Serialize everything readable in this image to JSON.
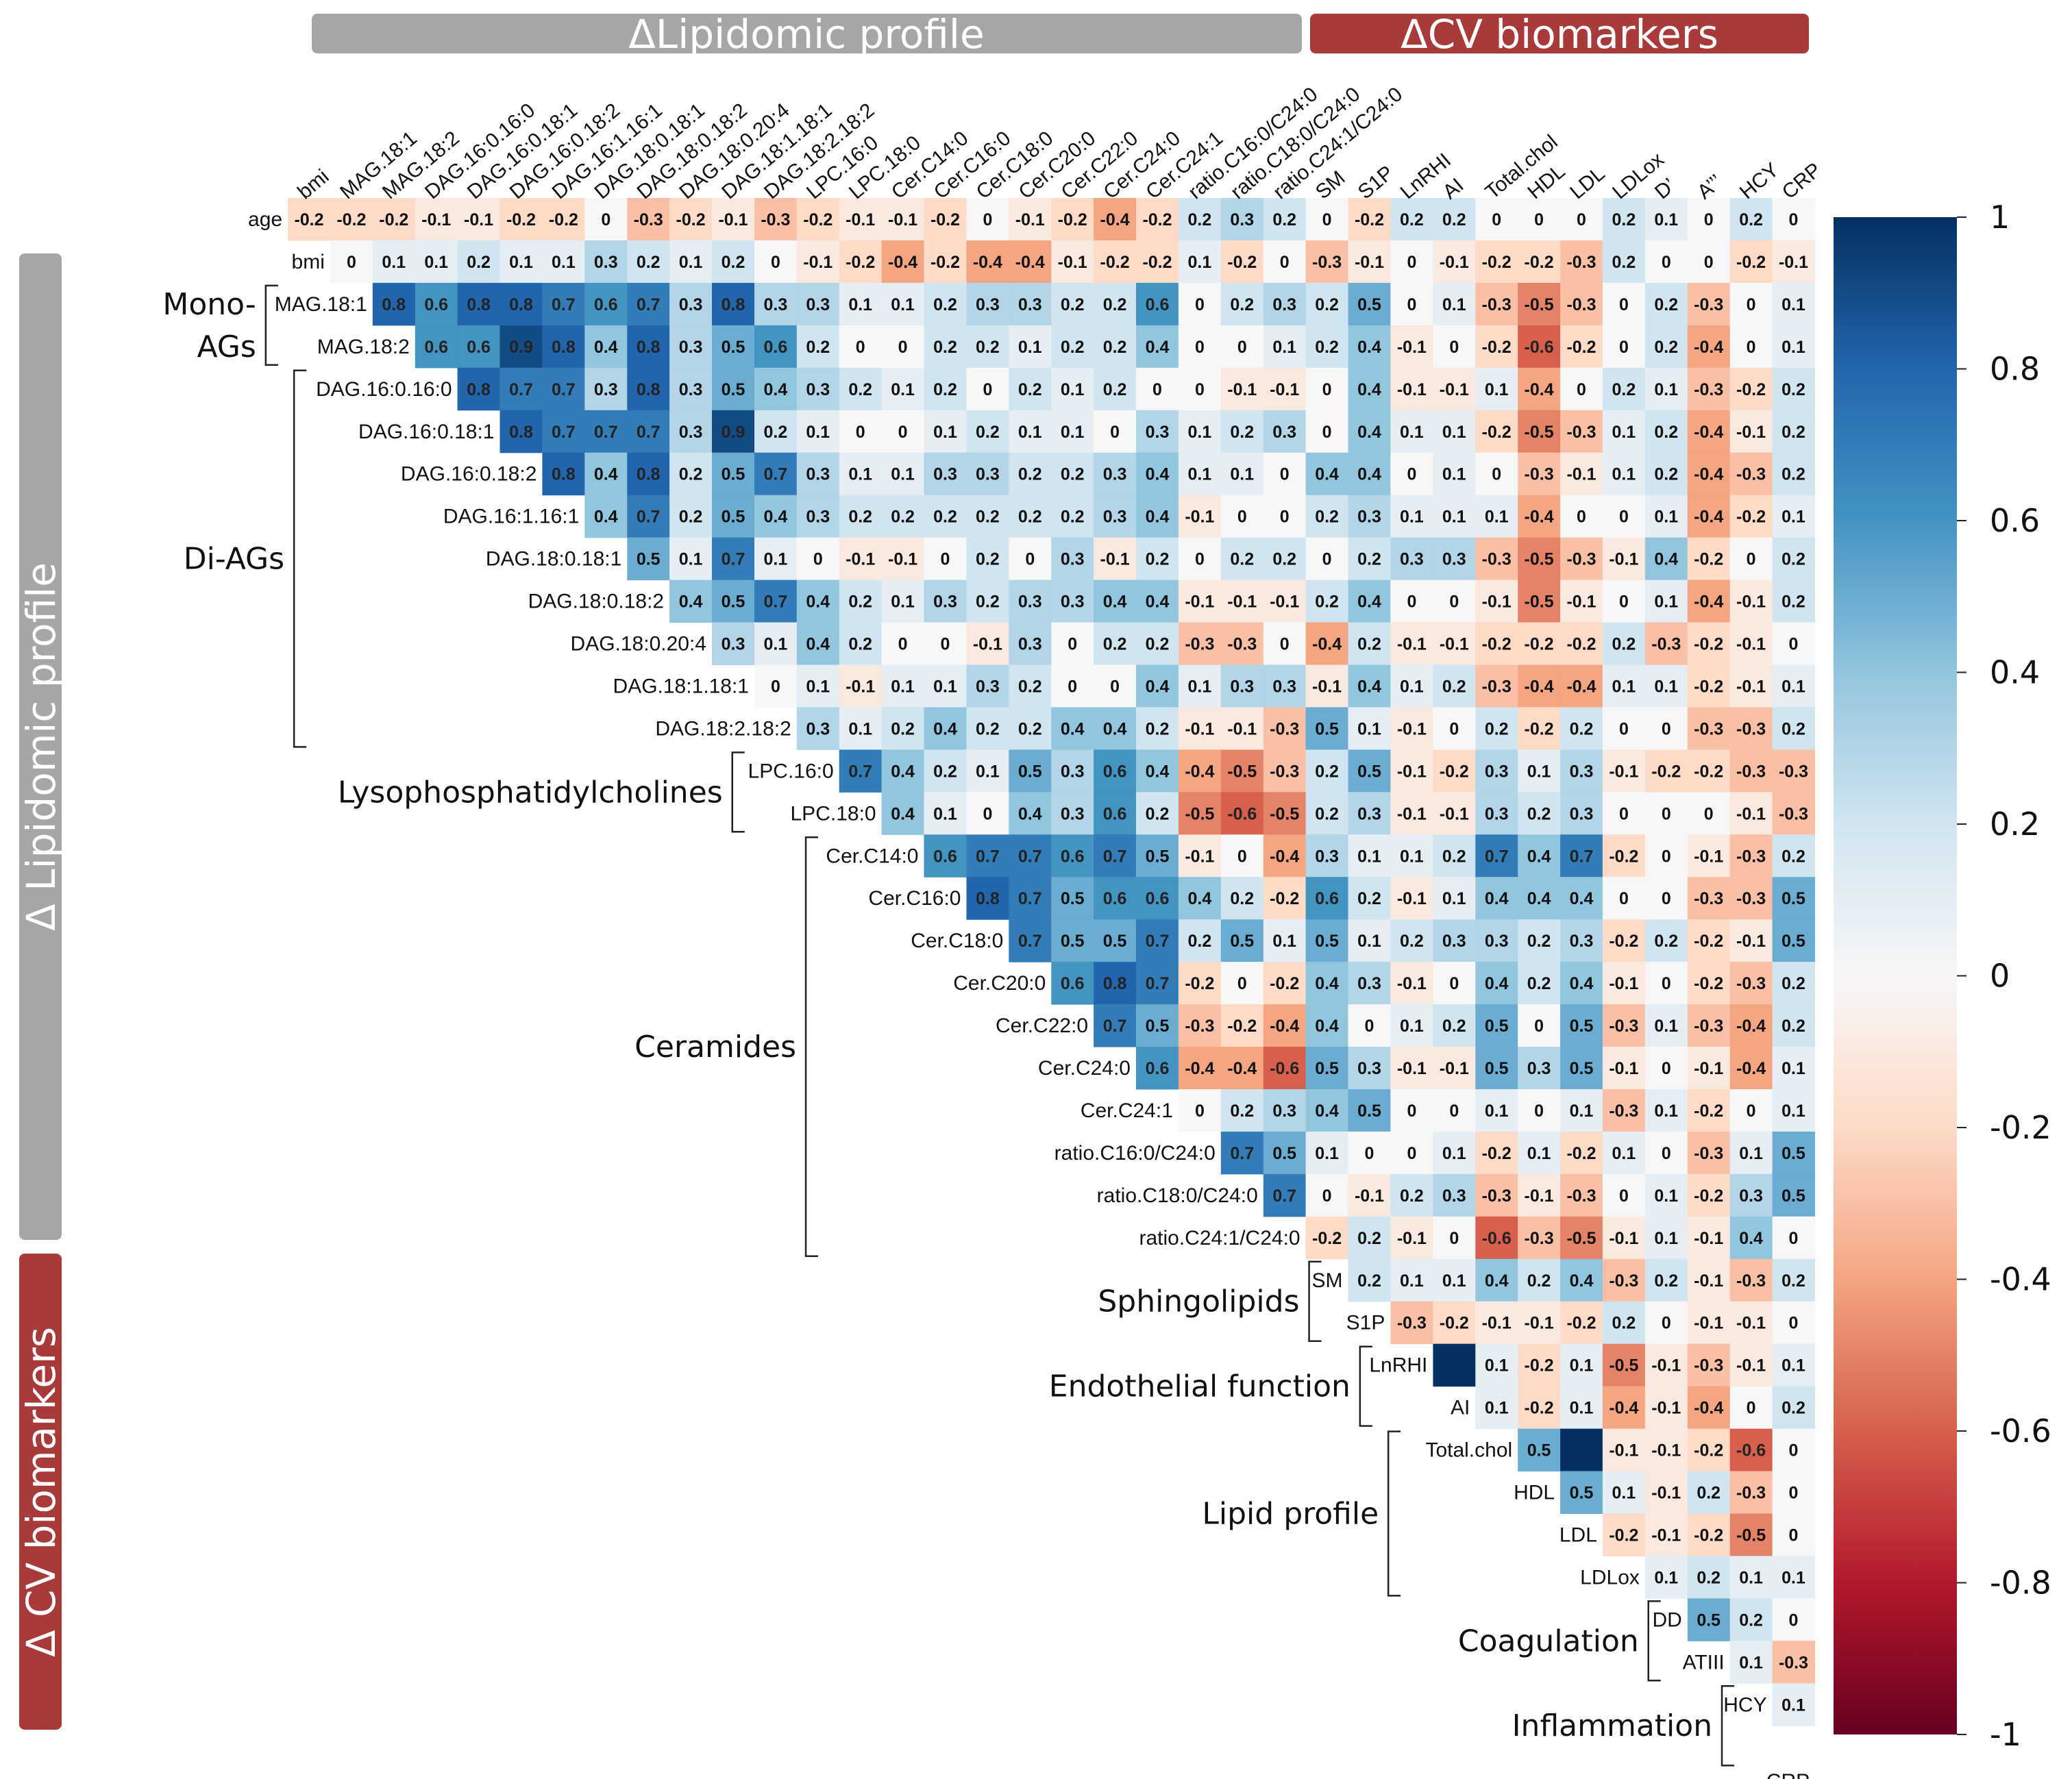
{
  "chart_data": {
    "type": "heatmap",
    "subtype": "upper-triangular correlation matrix",
    "row_variables": [
      "age",
      "bmi",
      "MAG.18:1",
      "MAG.18:2",
      "DAG.16:0.16:0",
      "DAG.16:0.18:1",
      "DAG.16:0.18:2",
      "DAG.16:1.16:1",
      "DAG.18:0.18:1",
      "DAG.18:0.18:2",
      "DAG.18:0.20:4",
      "DAG.18:1.18:1",
      "DAG.18:2.18:2",
      "LPC.16:0",
      "LPC.18:0",
      "Cer.C14:0",
      "Cer.C16:0",
      "Cer.C18:0",
      "Cer.C20:0",
      "Cer.C22:0",
      "Cer.C24:0",
      "Cer.C24:1",
      "ratio.C16:0/C24:0",
      "ratio.C18:0/C24:0",
      "ratio.C24:1/C24:0",
      "SM",
      "S1P",
      "LnRHI",
      "AI",
      "Total.chol",
      "HDL",
      "LDL",
      "LDLox",
      "DD",
      "ATIII",
      "HCY",
      "CRP"
    ],
    "column_labels": [
      "bmi",
      "MAG.18:1",
      "MAG.18:2",
      "DAG.16:0.16:0",
      "DAG.16:0.18:1",
      "DAG.16:0.18:2",
      "DAG.16:1.16:1",
      "DAG.18:0.18:1",
      "DAG.18:0.18:2",
      "DAG.18:0.20:4",
      "DAG.18:1.18:1",
      "DAG.18:2.18:2",
      "LPC.16:0",
      "LPC.18:0",
      "Cer.C14:0",
      "Cer.C16:0",
      "Cer.C18:0",
      "Cer.C20:0",
      "Cer.C22:0",
      "Cer.C24:0",
      "Cer.C24:1",
      "ratio.C16:0/C24:0",
      "ratio.C18:0/C24:0",
      "ratio.C24:1/C24:0",
      "SM",
      "S1P",
      "LnRHI",
      "AI",
      "Total.chol",
      "HDL",
      "LDL",
      "LDLox",
      "D’",
      "A’’’",
      "HCY",
      "CRP"
    ],
    "rows": [
      [
        -0.2,
        -0.2,
        -0.2,
        -0.1,
        -0.1,
        -0.2,
        -0.2,
        0,
        -0.3,
        -0.2,
        -0.1,
        -0.3,
        -0.2,
        -0.1,
        -0.1,
        -0.2,
        0,
        -0.1,
        -0.2,
        -0.4,
        -0.2,
        0.2,
        0.3,
        0.2,
        0,
        -0.2,
        0.2,
        0.2,
        0,
        0,
        0,
        0.2,
        0.1,
        0,
        0.2,
        0
      ],
      [
        0,
        0.1,
        0.1,
        0.2,
        0.1,
        0.1,
        0.3,
        0.2,
        0.1,
        0.2,
        0,
        -0.1,
        -0.2,
        -0.4,
        -0.2,
        -0.4,
        -0.4,
        -0.1,
        -0.2,
        -0.2,
        0.1,
        -0.2,
        0,
        -0.3,
        -0.1,
        0,
        -0.1,
        -0.2,
        -0.2,
        -0.3,
        0.2,
        0,
        0,
        -0.2,
        -0.1
      ],
      [
        0.8,
        0.6,
        0.8,
        0.8,
        0.7,
        0.6,
        0.7,
        0.3,
        0.8,
        0.3,
        0.3,
        0.1,
        0.1,
        0.2,
        0.3,
        0.3,
        0.2,
        0.2,
        0.6,
        0,
        0.2,
        0.3,
        0.2,
        0.5,
        0,
        0.1,
        -0.3,
        -0.5,
        -0.3,
        0,
        0.2,
        -0.3,
        0,
        0.1
      ],
      [
        0.6,
        0.6,
        0.9,
        0.8,
        0.4,
        0.8,
        0.3,
        0.5,
        0.6,
        0.2,
        0,
        0,
        0.2,
        0.2,
        0.1,
        0.2,
        0.2,
        0.4,
        0,
        0,
        0.1,
        0.2,
        0.4,
        -0.1,
        0,
        -0.2,
        -0.6,
        -0.2,
        0,
        0.2,
        -0.4,
        0,
        0.1
      ],
      [
        0.8,
        0.7,
        0.7,
        0.3,
        0.8,
        0.3,
        0.5,
        0.4,
        0.3,
        0.2,
        0.1,
        0.2,
        0,
        0.2,
        0.1,
        0.2,
        0,
        0,
        -0.1,
        -0.1,
        0,
        0.4,
        -0.1,
        -0.1,
        0.1,
        -0.4,
        0,
        0.2,
        0.1,
        -0.3,
        -0.2,
        0.2
      ],
      [
        0.8,
        0.7,
        0.7,
        0.7,
        0.3,
        0.9,
        0.2,
        0.1,
        0,
        0,
        0.1,
        0.2,
        0.1,
        0.1,
        0,
        0.3,
        0.1,
        0.2,
        0.3,
        0,
        0.4,
        0.1,
        0.1,
        -0.2,
        -0.5,
        -0.3,
        0.1,
        0.2,
        -0.4,
        -0.1,
        0.2
      ],
      [
        0.8,
        0.4,
        0.8,
        0.2,
        0.5,
        0.7,
        0.3,
        0.1,
        0.1,
        0.3,
        0.3,
        0.2,
        0.2,
        0.3,
        0.4,
        0.1,
        0.1,
        0,
        0.4,
        0.4,
        0,
        0.1,
        0,
        -0.3,
        -0.1,
        0.1,
        0.2,
        -0.4,
        -0.3,
        0.2
      ],
      [
        0.4,
        0.7,
        0.2,
        0.5,
        0.4,
        0.3,
        0.2,
        0.2,
        0.2,
        0.2,
        0.2,
        0.2,
        0.3,
        0.4,
        -0.1,
        0,
        0,
        0.2,
        0.3,
        0.1,
        0.1,
        0.1,
        -0.4,
        0,
        0,
        0.1,
        -0.4,
        -0.2,
        0.1
      ],
      [
        0.5,
        0.1,
        0.7,
        0.1,
        0,
        -0.1,
        -0.1,
        0,
        0.2,
        0,
        0.3,
        -0.1,
        0.2,
        0,
        0.2,
        0.2,
        0,
        0.2,
        0.3,
        0.3,
        -0.3,
        -0.5,
        -0.3,
        -0.1,
        0.4,
        -0.2,
        0,
        0.2
      ],
      [
        0.4,
        0.5,
        0.7,
        0.4,
        0.2,
        0.1,
        0.3,
        0.2,
        0.3,
        0.3,
        0.4,
        0.4,
        -0.1,
        -0.1,
        -0.1,
        0.2,
        0.4,
        0,
        0,
        -0.1,
        -0.5,
        -0.1,
        0,
        0.1,
        -0.4,
        -0.1,
        0.2
      ],
      [
        0.3,
        0.1,
        0.4,
        0.2,
        0,
        0,
        -0.1,
        0.3,
        0,
        0.2,
        0.2,
        -0.3,
        -0.3,
        0,
        -0.4,
        0.2,
        -0.1,
        -0.1,
        -0.2,
        -0.2,
        -0.2,
        0.2,
        -0.3,
        -0.2,
        -0.1,
        0
      ],
      [
        0,
        0.1,
        -0.1,
        0.1,
        0.1,
        0.3,
        0.2,
        0,
        0,
        0.4,
        0.1,
        0.3,
        0.3,
        -0.1,
        0.4,
        0.1,
        0.2,
        -0.3,
        -0.4,
        -0.4,
        0.1,
        0.1,
        -0.2,
        -0.1,
        0.1
      ],
      [
        0.3,
        0.1,
        0.2,
        0.4,
        0.2,
        0.2,
        0.4,
        0.4,
        0.2,
        -0.1,
        -0.1,
        -0.3,
        0.5,
        0.1,
        -0.1,
        0,
        0.2,
        -0.2,
        0.2,
        0,
        0,
        -0.3,
        -0.3,
        0.2
      ],
      [
        0.7,
        0.4,
        0.2,
        0.1,
        0.5,
        0.3,
        0.6,
        0.4,
        -0.4,
        -0.5,
        -0.3,
        0.2,
        0.5,
        -0.1,
        -0.2,
        0.3,
        0.1,
        0.3,
        -0.1,
        -0.2,
        -0.2,
        -0.3,
        -0.3
      ],
      [
        0.4,
        0.1,
        0,
        0.4,
        0.3,
        0.6,
        0.2,
        -0.5,
        -0.6,
        -0.5,
        0.2,
        0.3,
        -0.1,
        -0.1,
        0.3,
        0.2,
        0.3,
        0,
        0,
        0,
        -0.1,
        -0.3
      ],
      [
        0.6,
        0.7,
        0.7,
        0.6,
        0.7,
        0.5,
        -0.1,
        0,
        -0.4,
        0.3,
        0.1,
        0.1,
        0.2,
        0.7,
        0.4,
        0.7,
        -0.2,
        0,
        -0.1,
        -0.3,
        0.2
      ],
      [
        0.8,
        0.7,
        0.5,
        0.6,
        0.6,
        0.4,
        0.2,
        -0.2,
        0.6,
        0.2,
        -0.1,
        0.1,
        0.4,
        0.4,
        0.4,
        0,
        0,
        -0.3,
        -0.3,
        0.5
      ],
      [
        0.7,
        0.5,
        0.5,
        0.7,
        0.2,
        0.5,
        0.1,
        0.5,
        0.1,
        0.2,
        0.3,
        0.3,
        0.2,
        0.3,
        -0.2,
        0.2,
        -0.2,
        -0.1,
        0.5
      ],
      [
        0.6,
        0.8,
        0.7,
        -0.2,
        0,
        -0.2,
        0.4,
        0.3,
        -0.1,
        0,
        0.4,
        0.2,
        0.4,
        -0.1,
        0,
        -0.2,
        -0.3,
        0.2
      ],
      [
        0.7,
        0.5,
        -0.3,
        -0.2,
        -0.4,
        0.4,
        0,
        0.1,
        0.2,
        0.5,
        0,
        0.5,
        -0.3,
        0.1,
        -0.3,
        -0.4,
        0.2
      ],
      [
        0.6,
        -0.4,
        -0.4,
        -0.6,
        0.5,
        0.3,
        -0.1,
        -0.1,
        0.5,
        0.3,
        0.5,
        -0.1,
        0,
        -0.1,
        -0.4,
        0.1
      ],
      [
        0,
        0.2,
        0.3,
        0.4,
        0.5,
        0,
        0,
        0.1,
        0,
        0.1,
        -0.3,
        0.1,
        -0.2,
        0,
        0.1
      ],
      [
        0.7,
        0.5,
        0.1,
        0,
        0,
        0.1,
        -0.2,
        0.1,
        -0.2,
        0.1,
        0,
        -0.3,
        0.1,
        0.5
      ],
      [
        0.7,
        0,
        -0.1,
        0.2,
        0.3,
        -0.3,
        -0.1,
        -0.3,
        0,
        0.1,
        -0.2,
        0.3,
        0.5
      ],
      [
        -0.2,
        0.2,
        -0.1,
        0,
        -0.6,
        -0.3,
        -0.5,
        -0.1,
        0.1,
        -0.1,
        0.4,
        0
      ],
      [
        0.2,
        0.1,
        0.1,
        0.4,
        0.2,
        0.4,
        -0.3,
        0.2,
        -0.1,
        -0.3,
        0.2
      ],
      [
        -0.3,
        -0.2,
        -0.1,
        -0.1,
        -0.2,
        0.2,
        0,
        -0.1,
        -0.1,
        0
      ],
      [
        1,
        0.1,
        -0.2,
        0.1,
        -0.5,
        -0.1,
        -0.3,
        -0.1,
        0.1
      ],
      [
        0.1,
        -0.2,
        0.1,
        -0.4,
        -0.1,
        -0.4,
        0,
        0.2
      ],
      [
        0.5,
        1,
        -0.1,
        -0.1,
        -0.2,
        -0.6,
        0
      ],
      [
        0.5,
        0.1,
        -0.1,
        0.2,
        -0.3,
        0
      ],
      [
        -0.2,
        -0.1,
        -0.2,
        -0.5,
        0
      ],
      [
        0.1,
        0.2,
        0.1,
        0.1
      ],
      [
        0.5,
        0.2,
        0
      ],
      [
        0.1,
        -0.3
      ],
      [
        0.1
      ],
      []
    ],
    "hidden_value_cells": [
      [
        27,
        0
      ],
      [
        29,
        1
      ]
    ],
    "colorbar": {
      "min": -1,
      "max": 1,
      "ticks": [
        "1",
        "0.8",
        "0.6",
        "0.4",
        "0.2",
        "0",
        "-0.2",
        "-0.4",
        "-0.6",
        "-0.8",
        "-1"
      ],
      "colors": {
        "negative_end": "#67001f",
        "mid": "#f7f7f7",
        "positive_end": "#053061"
      }
    },
    "banners": {
      "top_left": {
        "text": "ΔLipidomic profile",
        "color": "#a6a6a6"
      },
      "top_right": {
        "text": "ΔCV biomarkers",
        "color": "#a93a3a"
      },
      "left_top": {
        "text": "Δ Lipidomic profile",
        "color": "#a6a6a6"
      },
      "left_bottom": {
        "text": "Δ CV biomarkers",
        "color": "#a93a3a"
      }
    },
    "groups": [
      {
        "label": [
          "Mono-",
          "AGs"
        ],
        "first_row": 2,
        "last_row": 3
      },
      {
        "label": [
          "Di-AGs"
        ],
        "first_row": 4,
        "last_row": 12
      },
      {
        "label": [
          "Lysophosphatidylcholines"
        ],
        "first_row": 13,
        "last_row": 14
      },
      {
        "label": [
          "Ceramides"
        ],
        "first_row": 15,
        "last_row": 24
      },
      {
        "label": [
          "Sphingolipids"
        ],
        "first_row": 25,
        "last_row": 26
      },
      {
        "label": [
          "Endothelial function"
        ],
        "first_row": 27,
        "last_row": 28
      },
      {
        "label": [
          "Lipid profile"
        ],
        "first_row": 29,
        "last_row": 32
      },
      {
        "label": [
          "Coagulation"
        ],
        "first_row": 33,
        "last_row": 34
      },
      {
        "label": [
          "Inflammation"
        ],
        "first_row": 35,
        "last_row": 36
      }
    ]
  }
}
